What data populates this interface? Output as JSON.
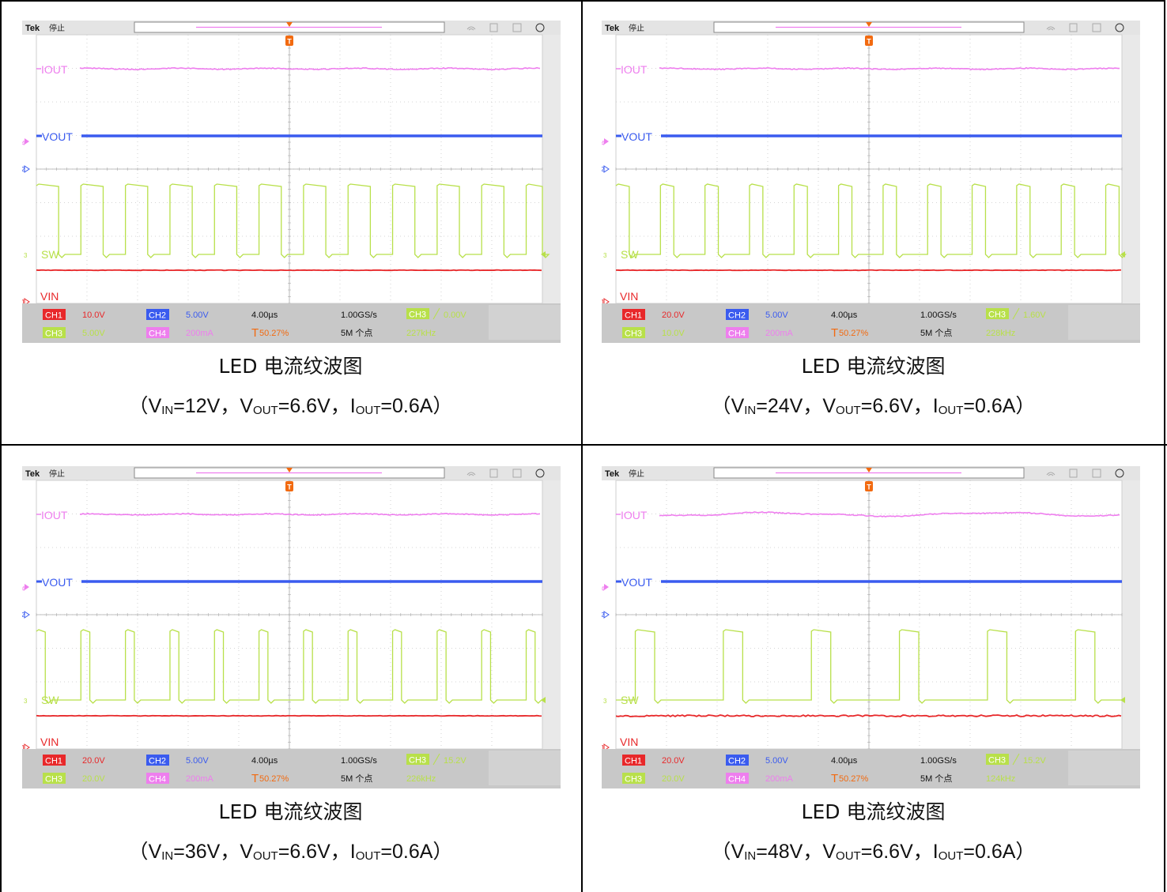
{
  "captions": {
    "title": "LED 电流纹波图",
    "prefix": "（",
    "suffix": "）",
    "sep": "，",
    "v_in_label": "V",
    "v_in_sub": "IN",
    "v_out_label": "V",
    "v_out_sub": "OUT",
    "i_out_label": "I",
    "i_out_sub": "OUT",
    "v_out_value": "=6.6V",
    "i_out_value": "=0.6A"
  },
  "scope_common": {
    "brand": "Tek",
    "status": "停止",
    "trigger_marker": "T",
    "channel_labels": {
      "iout": "IOUT",
      "vout": "VOUT",
      "sw": "SW",
      "vin": "VIN"
    },
    "marker_4": "4",
    "marker_2": "2",
    "marker_1": "1",
    "marker_3": "3",
    "ch1": "CH1",
    "ch2": "CH2",
    "ch3": "CH3",
    "ch4": "CH4",
    "ch2_scale": "5.00V",
    "ch4_scale": "200mA",
    "timebase": "4.00µs",
    "sample_rate": "1.00GS/s",
    "record_length": "5M 个点",
    "trigger_pos": "50.27%",
    "colors": {
      "ch1": "#e8282a",
      "ch2": "#3a5bef",
      "ch3": "#b8e04a",
      "ch4": "#ee7eee",
      "panel": "#c8c8c8",
      "trigger": "#f26a10"
    }
  },
  "chart_data": [
    {
      "type": "line",
      "title": "LED 电流纹波图",
      "v_in": "=12V",
      "ch1_scale": "10.0V",
      "ch3_scale": "5.00V",
      "trig_level": "0.00V",
      "frequency": "227kHz",
      "series": [
        {
          "name": "IOUT",
          "values": "flat with small ripple"
        },
        {
          "name": "VOUT",
          "values": "flat"
        },
        {
          "name": "SW",
          "values": "square wave"
        },
        {
          "name": "VIN",
          "values": "flat"
        }
      ],
      "sw_period_divs": 0.88,
      "sw_duty": 0.5
    },
    {
      "type": "line",
      "title": "LED 电流纹波图",
      "v_in": "=24V",
      "ch1_scale": "20.0V",
      "ch3_scale": "10.0V",
      "trig_level": "1.60V",
      "frequency": "228kHz",
      "series": [
        {
          "name": "IOUT",
          "values": "flat with small ripple"
        },
        {
          "name": "VOUT",
          "values": "flat"
        },
        {
          "name": "SW",
          "values": "square wave"
        },
        {
          "name": "VIN",
          "values": "flat"
        }
      ],
      "sw_period_divs": 0.88,
      "sw_duty": 0.3
    },
    {
      "type": "line",
      "title": "LED 电流纹波图",
      "v_in": "=36V",
      "ch1_scale": "20.0V",
      "ch3_scale": "20.0V",
      "trig_level": "15.2V",
      "frequency": "226kHz",
      "series": [
        {
          "name": "IOUT",
          "values": "flat with small ripple"
        },
        {
          "name": "VOUT",
          "values": "flat"
        },
        {
          "name": "SW",
          "values": "square wave"
        },
        {
          "name": "VIN",
          "values": "flat"
        }
      ],
      "sw_period_divs": 0.88,
      "sw_duty": 0.2
    },
    {
      "type": "line",
      "title": "LED 电流纹波图",
      "v_in": "=48V",
      "ch1_scale": "20.0V",
      "ch3_scale": "20.0V",
      "trig_level": "15.2V",
      "frequency": "124kHz",
      "series": [
        {
          "name": "IOUT",
          "values": "flat with small ripple"
        },
        {
          "name": "VOUT",
          "values": "flat"
        },
        {
          "name": "SW",
          "values": "square wave"
        },
        {
          "name": "VIN",
          "values": "flat"
        }
      ],
      "sw_period_divs": 1.74,
      "sw_duty": 0.22
    }
  ]
}
